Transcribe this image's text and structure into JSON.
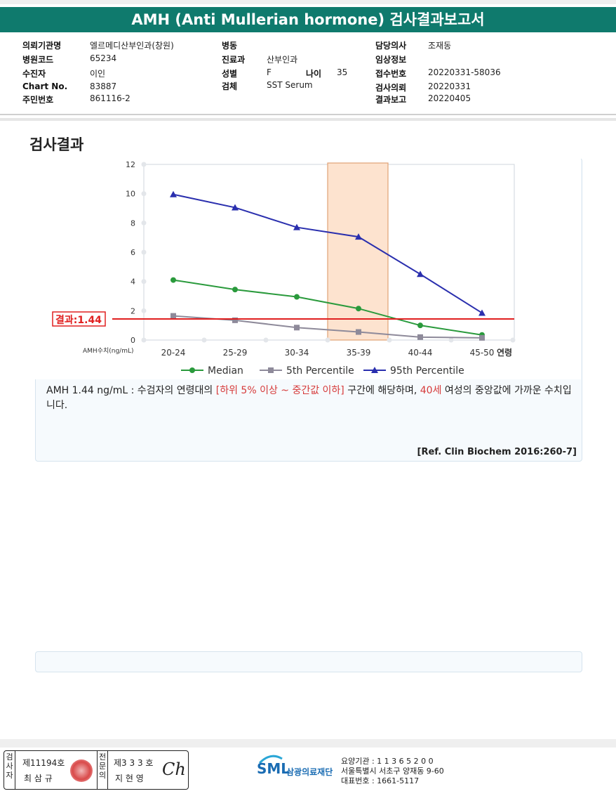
{
  "report": {
    "title": "AMH (Anti Mullerian hormone) 검사결과보고서"
  },
  "info": {
    "col1": [
      {
        "label": "의뢰기관명",
        "value": "엘르메디산부인과(창원)"
      },
      {
        "label": "병원코드",
        "value": "65234"
      },
      {
        "label": "수진자",
        "value": "이인"
      },
      {
        "label": "Chart No.",
        "value": "83887"
      },
      {
        "label": "주민번호",
        "value": "861116-2"
      }
    ],
    "col2": [
      {
        "label": "병동",
        "value": ""
      },
      {
        "label": "진료과",
        "value": "산부인과"
      },
      {
        "label": "성별",
        "value": "F"
      },
      {
        "label": "검체",
        "value": "SST Serum"
      }
    ],
    "age": {
      "label": "나이",
      "value": "35"
    },
    "col3": [
      {
        "label": "담당의사",
        "value": "조재동"
      },
      {
        "label": "임상정보",
        "value": ""
      },
      {
        "label": "접수번호",
        "value": "20220331-58036"
      },
      {
        "label": "검사의뢰",
        "value": "20220331"
      },
      {
        "label": "결과보고",
        "value": "20220405"
      }
    ]
  },
  "section": {
    "title": "검사결과"
  },
  "chart_data": {
    "type": "line",
    "categories": [
      "20-24",
      "25-29",
      "30-34",
      "35-39",
      "40-44",
      "45-50"
    ],
    "series": [
      {
        "name": "Median",
        "values": [
          4.1,
          3.45,
          2.95,
          2.15,
          1.0,
          0.35
        ],
        "color": "#2a9a3c",
        "marker": "circle"
      },
      {
        "name": "5th Percentile",
        "values": [
          1.65,
          1.35,
          0.85,
          0.55,
          0.2,
          0.15
        ],
        "color": "#8e8a9a",
        "marker": "square"
      },
      {
        "name": "95th Percentile",
        "values": [
          9.95,
          9.05,
          7.7,
          7.05,
          4.5,
          1.85
        ],
        "color": "#2a2fae",
        "marker": "triangle"
      }
    ],
    "ylim": [
      0,
      12
    ],
    "yticks": [
      "0",
      "2",
      "4",
      "6",
      "8",
      "10",
      "12"
    ],
    "ylabel": "AMH수치(ng/mL)",
    "xlabel": "연령",
    "highlight_category": "35-39",
    "result_line": {
      "value": 1.44,
      "label": "결과:1.44",
      "color": "#e02020"
    },
    "grid": true,
    "legend": "bottom"
  },
  "description": {
    "part1": "AMH  1.44 ng/mL : 수검자의 연령대의 ",
    "part2": "[하위 5% 이상 ~ 중간값 이하]",
    "part3": " 구간에 해당하며, ",
    "part4": "40세",
    "part5": " 여성의 중앙값에 가까운 수치입니다."
  },
  "reference": "[Ref. Clin Biochem 2016:260-7]",
  "footer": {
    "examiner_label": "검사자",
    "examiner_no": "제11194호",
    "examiner_name": "최 삼 규",
    "specialist_label": "전문의",
    "specialist_no": "제3 3 3 호",
    "specialist_name": "지 현 영",
    "signature": "Ch",
    "logo_text": "SML",
    "org_name": "삼광의료재단",
    "code_line": "요양기관 : 1 1 3 6 5 2 0 0",
    "address": "서울특별시 서초구 양재동 9-60",
    "phone": "대표번호 : 1661-5117"
  }
}
